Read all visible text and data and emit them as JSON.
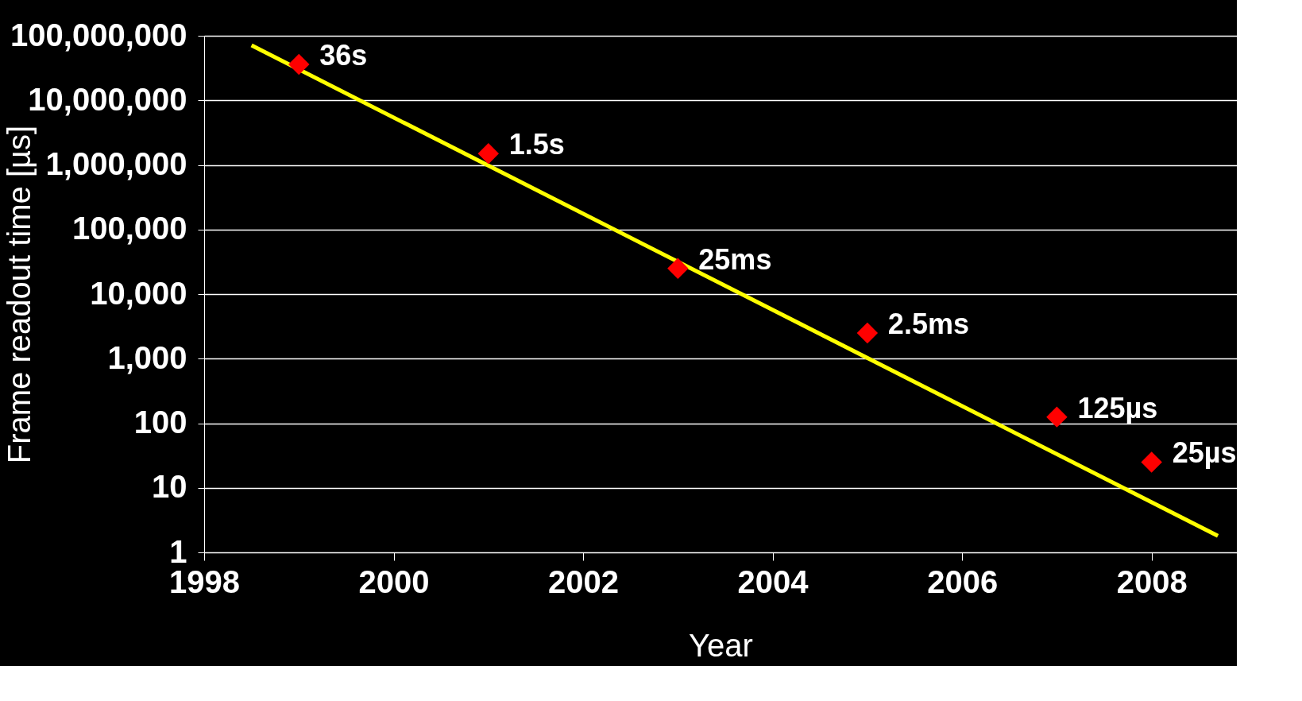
{
  "chart_data": {
    "type": "scatter",
    "xlabel": "Year",
    "ylabel": "Frame readout time [µs]",
    "series": [
      {
        "color": "#ff0000",
        "marker": "diamond",
        "x": [
          1999,
          2001,
          2003,
          2005,
          2007,
          2008
        ],
        "values": [
          36000000,
          1500000,
          25000,
          2500,
          125,
          25
        ]
      },
      {
        "type": "line",
        "color": "#ffff00",
        "line_style": "solid",
        "x": [
          1998.5,
          2008.7
        ],
        "values": [
          71000000,
          1.8
        ]
      }
    ],
    "annotations": [
      {
        "text": "36s",
        "x": 1999,
        "y": 36000000
      },
      {
        "text": "1.5s",
        "x": 2001,
        "y": 1500000
      },
      {
        "text": "25ms",
        "x": 2003,
        "y": 25000
      },
      {
        "text": "2.5ms",
        "x": 2005,
        "y": 2500
      },
      {
        "text": "125µs",
        "x": 2007,
        "y": 125
      },
      {
        "text": "25µs",
        "x": 2008,
        "y": 25
      }
    ],
    "log": "y",
    "grid": "y",
    "xlim": [
      1998,
      2008.9
    ],
    "xticks": [
      1998,
      2000,
      2002,
      2004,
      2006,
      2008
    ],
    "ylim": [
      1,
      100000000
    ],
    "yticks": [
      1,
      10,
      100,
      {
        "value": 1000,
        "label": "1,000"
      },
      {
        "value": 10000,
        "label": "10,000"
      },
      {
        "value": 100000,
        "label": "100,000"
      },
      {
        "value": 1000000,
        "label": "1,000,000"
      },
      {
        "value": 10000000,
        "label": "10,000,000"
      },
      {
        "value": 100000000,
        "label": "100,000,000"
      }
    ]
  }
}
